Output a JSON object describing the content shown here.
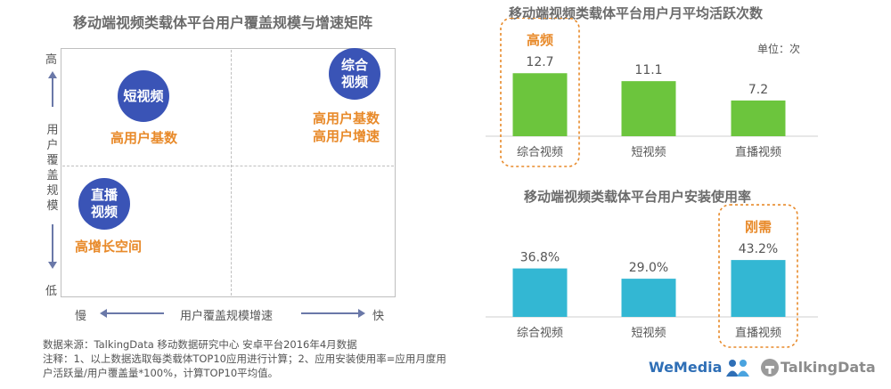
{
  "matrix": {
    "title": "移动端视频类载体平台用户覆盖规模与增速矩阵",
    "y_high": "高",
    "y_low": "低",
    "y_label": "用户覆盖规模",
    "x_slow": "慢",
    "x_fast": "快",
    "x_label": "用户覆盖规模增速",
    "items": [
      {
        "bubble": "短视频",
        "desc": [
          "高用户基数"
        ]
      },
      {
        "bubble": "综合视频",
        "desc": [
          "高用户基数",
          "高用户增速"
        ]
      },
      {
        "bubble": "直播视频",
        "desc": [
          "高增长空间"
        ]
      }
    ]
  },
  "notes": [
    "数据来源：TalkingData 移动数据研究中心 安卓平台2016年4月数据",
    "注释：1、以上数据选取每类载体TOP10应用进行计算；2、应用安装使用率=应用月度用",
    "户活跃量/用户覆盖量*100%，计算TOP10平均值。"
  ],
  "brand": {
    "wemedia": "WeMedia",
    "talkingdata": "TalkingData"
  },
  "chart_data": [
    {
      "type": "bar",
      "title": "移动端视频类载体平台用户月平均活跃次数",
      "unit": "单位：次",
      "categories": [
        "综合视频",
        "短视频",
        "直播视频"
      ],
      "values": [
        12.7,
        11.1,
        7.2
      ],
      "value_labels": [
        "12.7",
        "11.1",
        "7.2"
      ],
      "highlight": {
        "index": 0,
        "label": "高频"
      },
      "color": "#6cc53d",
      "ylim": [
        0,
        14
      ]
    },
    {
      "type": "bar",
      "title": "移动端视频类载体平台用户安装使用率",
      "categories": [
        "综合视频",
        "短视频",
        "直播视频"
      ],
      "values": [
        36.8,
        29.0,
        43.2
      ],
      "value_labels": [
        "36.8%",
        "29.0%",
        "43.2%"
      ],
      "highlight": {
        "index": 2,
        "label": "刚需"
      },
      "color": "#33b7d3",
      "ylim": [
        0,
        48
      ]
    }
  ]
}
